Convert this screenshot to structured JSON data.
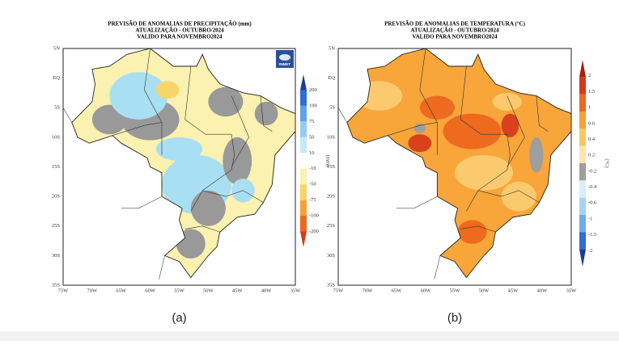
{
  "panels": [
    {
      "title": [
        "PREVISÃO DE ANOMALIAS DE PRECIPITAÇÃO (mm)",
        "ATUALIZAÇÃO - OUTUBRO/2024",
        "VALIDO PARA NOVEMBRO2024"
      ],
      "logo": "INMET",
      "colorbar": {
        "labels": [
          "200",
          "100",
          "75",
          "50",
          "10",
          "-10",
          "-50",
          "-75",
          "-100",
          "-200"
        ],
        "unit": "(mm)"
      },
      "lat_labels": [
        "5N",
        "EQ",
        "5S",
        "10S",
        "15S",
        "20S",
        "25S",
        "30S",
        "35S"
      ],
      "lon_labels": [
        "75W",
        "70W",
        "65W",
        "60W",
        "55W",
        "50W",
        "45W",
        "40W",
        "35W"
      ],
      "caption": "(a)"
    },
    {
      "title": [
        "PREVISÃO DE ANOMALIAS DE TEMPERATURA (°C)",
        "ATUALIZAÇÃO - OUTUBRO/2024",
        "VALIDO PARA NOVEMBRO2024"
      ],
      "colorbar": {
        "labels": [
          "2",
          "1.5",
          "1",
          "0.6",
          "0.4",
          "0.2",
          "-0.2",
          "-0.4",
          "-0.6",
          "-1",
          "-1.5",
          "-2"
        ],
        "unit": "(°C)"
      },
      "lat_labels": [
        "5N",
        "EQ",
        "5S",
        "10S",
        "15S",
        "20S",
        "25S",
        "30S",
        "35S"
      ],
      "lon_labels": [
        "75W",
        "70W",
        "65W",
        "60W",
        "55W",
        "50W",
        "45W",
        "40W",
        "35W"
      ],
      "caption": "(b)"
    }
  ]
}
